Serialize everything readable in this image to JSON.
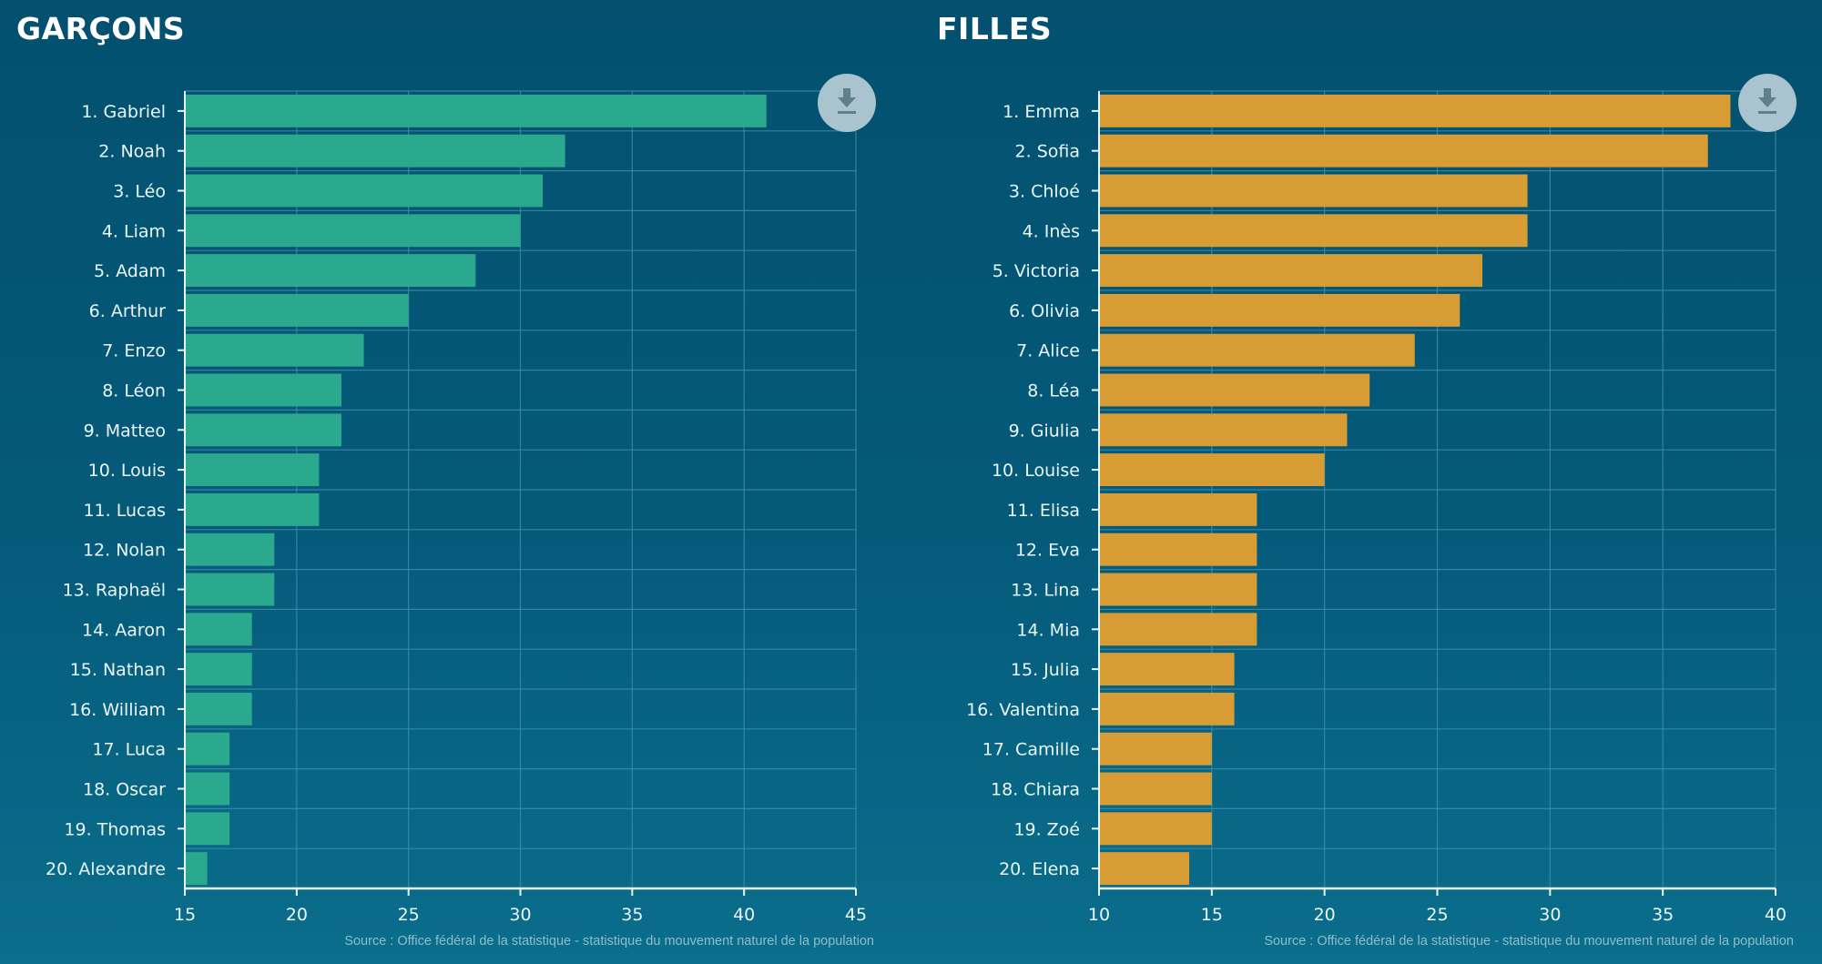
{
  "colors": {
    "boys": "#2aa98f",
    "girls": "#d89c35",
    "grid": "#3f8fab",
    "axis": "#e8f5f7"
  },
  "download_icon": "download-icon",
  "chart_data": [
    {
      "type": "bar",
      "orientation": "horizontal",
      "title": "GARÇONS",
      "categories": [
        "1. Gabriel",
        "2. Noah",
        "3. Léo",
        "4. Liam",
        "5. Adam",
        "6. Arthur",
        "7. Enzo",
        "8. Léon",
        "9. Matteo",
        "10. Louis",
        "11. Lucas",
        "12. Nolan",
        "13. Raphaël",
        "14. Aaron",
        "15. Nathan",
        "16. William",
        "17. Luca",
        "18. Oscar",
        "19. Thomas",
        "20. Alexandre"
      ],
      "values": [
        41,
        32,
        31,
        30,
        28,
        25,
        23,
        22,
        22,
        21,
        21,
        19,
        19,
        18,
        18,
        18,
        17,
        17,
        17,
        16
      ],
      "xlim": [
        15,
        45
      ],
      "xticks": [
        "15",
        "20",
        "25",
        "30",
        "35",
        "40",
        "45"
      ],
      "xlabel": "",
      "ylabel": "",
      "grid": true,
      "source": "Source : Office fédéral de la statistique - statistique du mouvement naturel de la population"
    },
    {
      "type": "bar",
      "orientation": "horizontal",
      "title": "FILLES",
      "categories": [
        "1. Emma",
        "2. Sofia",
        "3. Chloé",
        "4. Inès",
        "5. Victoria",
        "6. Olivia",
        "7. Alice",
        "8. Léa",
        "9. Giulia",
        "10. Louise",
        "11. Elisa",
        "12. Eva",
        "13. Lina",
        "14. Mia",
        "15. Julia",
        "16. Valentina",
        "17. Camille",
        "18. Chiara",
        "19. Zoé",
        "20. Elena"
      ],
      "values": [
        38,
        37,
        29,
        29,
        27,
        26,
        24,
        22,
        21,
        20,
        17,
        17,
        17,
        17,
        16,
        16,
        15,
        15,
        15,
        14
      ],
      "xlim": [
        10,
        40
      ],
      "xticks": [
        "10",
        "15",
        "20",
        "25",
        "30",
        "35",
        "40"
      ],
      "xlabel": "",
      "ylabel": "",
      "grid": true,
      "source": "Source : Office fédéral de la statistique - statistique du mouvement naturel de la population"
    }
  ]
}
